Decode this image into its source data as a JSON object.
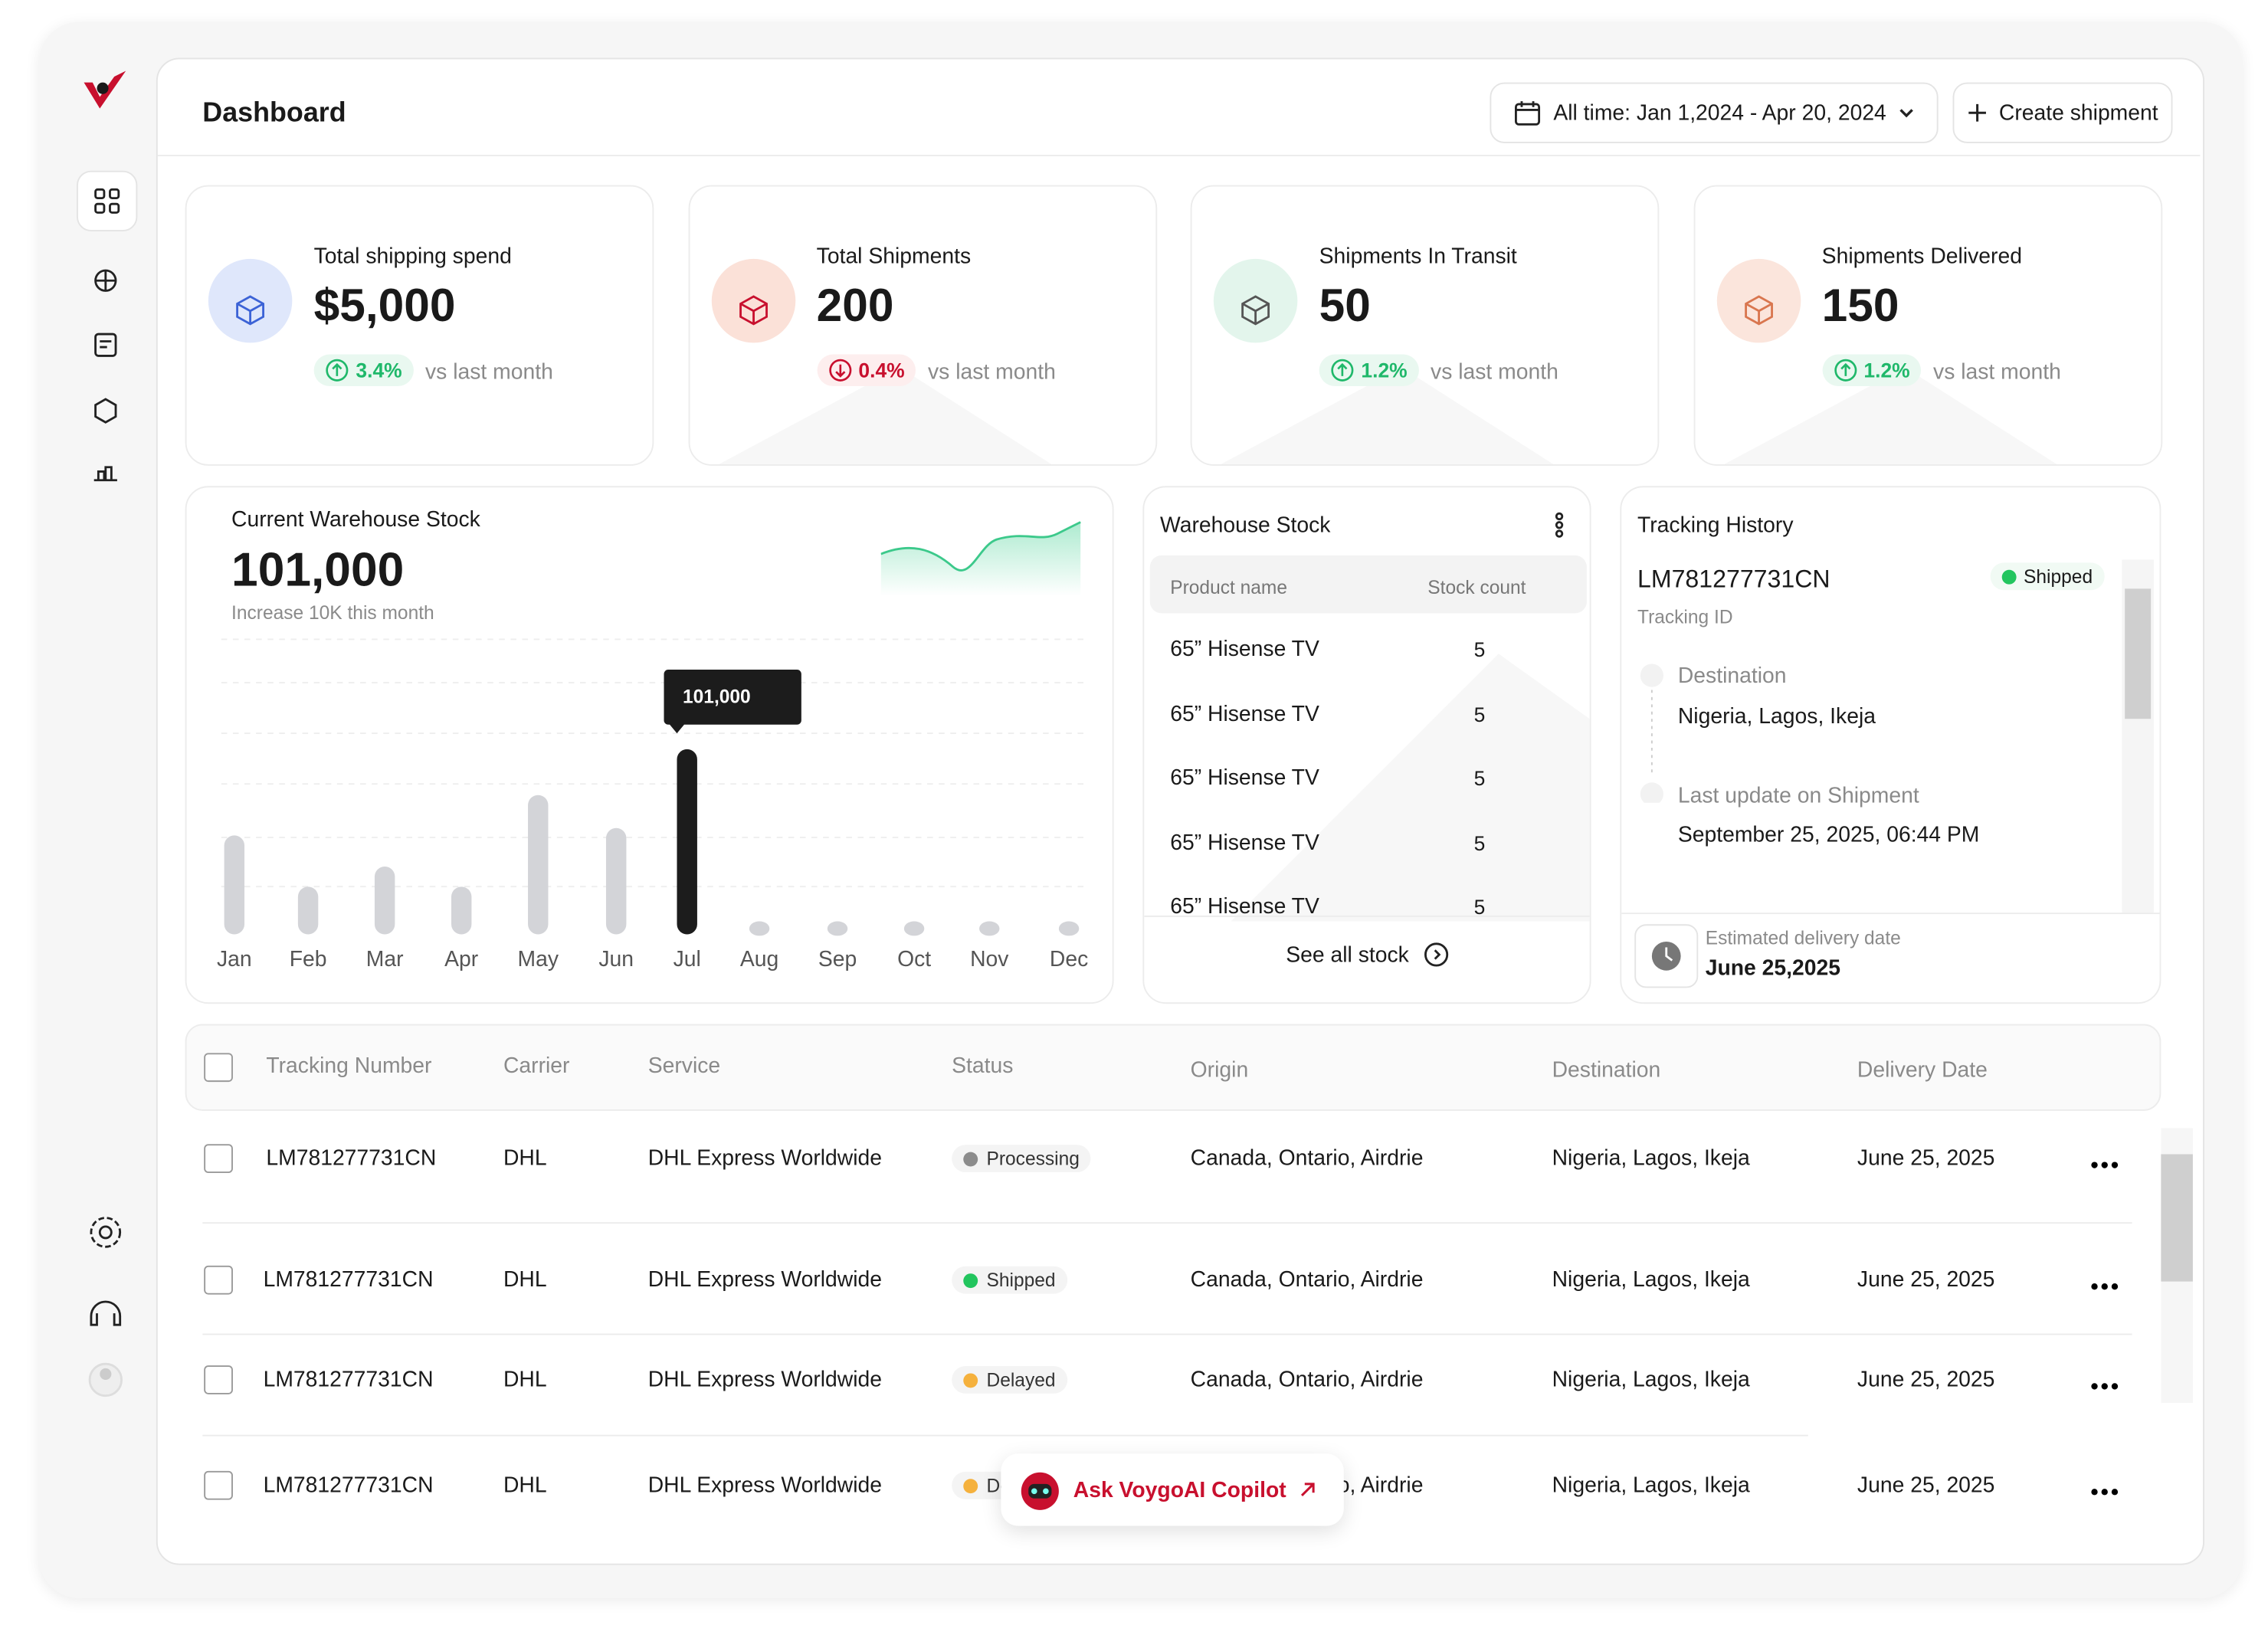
{
  "header": {
    "title": "Dashboard",
    "date_range": "All time: Jan 1,2024 - Apr 20, 2024",
    "create_button": "Create shipment"
  },
  "stats": [
    {
      "label": "Total shipping spend",
      "value": "$5,000",
      "change": "3.4%",
      "trend": "up",
      "comparison": "vs last month"
    },
    {
      "label": "Total Shipments",
      "value": "200",
      "change": "0.4%",
      "trend": "down",
      "comparison": "vs last month"
    },
    {
      "label": "Shipments In Transit",
      "value": "50",
      "change": "1.2%",
      "trend": "up",
      "comparison": "vs last month"
    },
    {
      "label": "Shipments Delivered",
      "value": "150",
      "change": "1.2%",
      "trend": "up",
      "comparison": "vs last month"
    }
  ],
  "stock_card": {
    "title": "Current Warehouse Stock",
    "value": "101,000",
    "subtitle": "Increase 10K this month"
  },
  "chart_data": {
    "type": "bar",
    "categories": [
      "Jan",
      "Feb",
      "Mar",
      "Apr",
      "May",
      "Jun",
      "Jul",
      "Aug",
      "Sep",
      "Oct",
      "Nov",
      "Dec"
    ],
    "values": [
      54000,
      26000,
      37000,
      26000,
      76000,
      58000,
      101000,
      0,
      0,
      0,
      0,
      0
    ],
    "value_labels": [
      null,
      null,
      null,
      null,
      null,
      null,
      "101,000",
      null,
      null,
      null,
      null,
      null
    ],
    "color": "#d3d4d8",
    "highlight_color": "#1c1c1c"
  },
  "warehouse_stock": {
    "title": "Warehouse Stock",
    "columns": [
      "Product name",
      "Stock count"
    ],
    "rows": [
      [
        "65” Hisense TV",
        5
      ],
      [
        "65” Hisense TV",
        5
      ],
      [
        "65” Hisense TV",
        5
      ],
      [
        "65” Hisense TV",
        5
      ],
      [
        "65” Hisense TV",
        5
      ]
    ],
    "link": "See all stock"
  },
  "tracking": {
    "title": "Tracking History",
    "id": "LM781277731CN",
    "status": "Shipped",
    "id_label": "Tracking ID",
    "steps": [
      {
        "label": "Destination",
        "value": "Nigeria, Lagos, Ikeja"
      },
      {
        "label": "Last update on Shipment",
        "value": "September 25, 2025, 06:44 PM"
      }
    ],
    "eta_label": "Estimated delivery date",
    "eta": "June 25,2025"
  },
  "shipments": {
    "columns": [
      "Tracking Number",
      "Carrier",
      "Service",
      "Status",
      "Origin",
      "Destination",
      "Delivery Date"
    ],
    "rows": [
      [
        "LM781277731CN",
        "DHL",
        "DHL Express Worldwide",
        "Processing",
        "Canada, Ontario, Airdrie",
        "Nigeria, Lagos, Ikeja",
        "June 25, 2025"
      ],
      [
        "LM781277731CN",
        "DHL",
        "DHL Express Worldwide",
        "Shipped",
        "Canada, Ontario, Airdrie",
        "Nigeria, Lagos, Ikeja",
        "June 25, 2025"
      ],
      [
        "LM781277731CN",
        "DHL",
        "DHL Express Worldwide",
        "Delayed",
        "Canada, Ontario, Airdrie",
        "Nigeria, Lagos, Ikeja",
        "June 25, 2025"
      ],
      [
        "LM781277731CN",
        "DHL",
        "DHL Express Worldwide",
        "Delayed",
        "Canada, Ontario, Airdrie",
        "Nigeria, Lagos, Ikeja",
        "June 25, 2025"
      ]
    ],
    "status_colors": {
      "Processing": "#8c8c8c",
      "Shipped": "#22c55e",
      "Delayed": "#f5b13d"
    }
  },
  "copilot": {
    "label": "Ask VoygoAI Copilot"
  }
}
